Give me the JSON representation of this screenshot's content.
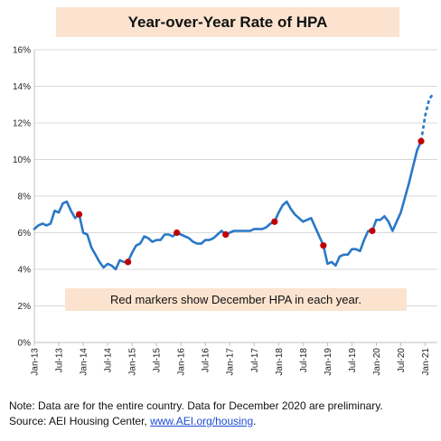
{
  "chart_data": {
    "type": "line",
    "title": "Year-over-Year Rate of HPA",
    "xlabel": "",
    "ylabel": "",
    "ylim": [
      0,
      16
    ],
    "y_ticks": [
      "0%",
      "2%",
      "4%",
      "6%",
      "8%",
      "10%",
      "12%",
      "14%",
      "16%"
    ],
    "x_ticks": [
      "Jan-13",
      "Jul-13",
      "Jan-14",
      "Jul-14",
      "Jan-15",
      "Jul-15",
      "Jan-16",
      "Jul-16",
      "Jan-17",
      "Jul-17",
      "Jan-18",
      "Jul-18",
      "Jan-19",
      "Jul-19",
      "Jan-20",
      "Jul-20",
      "Jan-21"
    ],
    "series": [
      {
        "name": "",
        "color": "#2a78c7",
        "values": [
          6.2,
          6.4,
          6.5,
          6.4,
          6.5,
          7.2,
          7.1,
          7.6,
          7.7,
          7.2,
          6.8,
          7.0,
          6.0,
          5.9,
          5.2,
          4.8,
          4.4,
          4.1,
          4.3,
          4.2,
          4.0,
          4.5,
          4.4,
          4.4,
          4.9,
          5.3,
          5.4,
          5.8,
          5.7,
          5.5,
          5.6,
          5.6,
          5.9,
          5.9,
          5.8,
          6.0,
          5.9,
          5.8,
          5.7,
          5.5,
          5.4,
          5.4,
          5.6,
          5.6,
          5.7,
          5.9,
          6.1,
          5.9,
          6.0,
          6.1,
          6.1,
          6.1,
          6.1,
          6.1,
          6.2,
          6.2,
          6.2,
          6.3,
          6.5,
          6.6,
          7.1,
          7.5,
          7.7,
          7.3,
          7.0,
          6.8,
          6.6,
          6.7,
          6.8,
          6.3,
          5.8,
          5.3,
          4.3,
          4.4,
          4.2,
          4.7,
          4.8,
          4.8,
          5.1,
          5.1,
          5.0,
          5.6,
          6.1,
          6.1,
          6.7,
          6.7,
          6.9,
          6.6,
          6.1,
          6.6,
          7.1,
          7.9,
          8.7,
          9.6,
          10.5,
          11.0
        ],
        "preliminary_values": [
          11.0,
          12.4,
          13.3,
          13.6
        ]
      }
    ],
    "december_markers": [
      {
        "label": "Dec-13",
        "value": 7.0
      },
      {
        "label": "Dec-14",
        "value": 4.4
      },
      {
        "label": "Dec-15",
        "value": 6.0
      },
      {
        "label": "Dec-16",
        "value": 5.9
      },
      {
        "label": "Dec-17",
        "value": 6.6
      },
      {
        "label": "Dec-18",
        "value": 5.3
      },
      {
        "label": "Dec-19",
        "value": 6.1
      },
      {
        "label": "Dec-20",
        "value": 11.0
      }
    ],
    "marker_color": "#c00000",
    "grid": true,
    "annotation": "Red markers show December HPA in each year."
  },
  "note": {
    "line1": "Note: Data are for the entire country. Data for December 2020 are preliminary.",
    "line2_prefix": "Source: AEI Housing Center, ",
    "link_text": "www.AEI.org/housing",
    "line2_suffix": "."
  }
}
